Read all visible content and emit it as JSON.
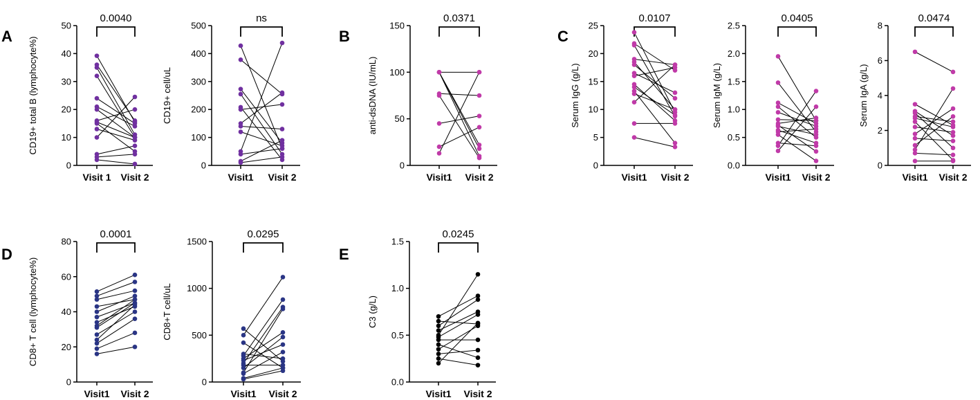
{
  "panel_letters": [
    "A",
    "B",
    "C",
    "D",
    "E"
  ],
  "chart_data": [
    {
      "type": "scatter",
      "panel": "A",
      "color": "#7030a0",
      "ylabel": "CD19+ total B (lymphocyte%)",
      "categories": [
        "Visit 1",
        "Visit 2"
      ],
      "ylim": [
        0,
        50
      ],
      "yticks": [
        "0",
        "10",
        "20",
        "30",
        "40",
        "50"
      ],
      "p_label": "0.0040",
      "pairs": [
        [
          39.2,
          15.5
        ],
        [
          36,
          16
        ],
        [
          35,
          11
        ],
        [
          32,
          10
        ],
        [
          24,
          15
        ],
        [
          21,
          14
        ],
        [
          20,
          10
        ],
        [
          16,
          20
        ],
        [
          15.5,
          10
        ],
        [
          15,
          5
        ],
        [
          13,
          9
        ],
        [
          10,
          24.5
        ],
        [
          4,
          7
        ],
        [
          3,
          4
        ],
        [
          2,
          0.5
        ]
      ]
    },
    {
      "type": "scatter",
      "panel": "A",
      "color": "#7030a0",
      "ylabel": "CD19+ cell/uL",
      "categories": [
        "Visit1",
        "Visit 2"
      ],
      "ylim": [
        0,
        500
      ],
      "yticks": [
        "0",
        "100",
        "200",
        "300",
        "400",
        "500"
      ],
      "p_label": "ns",
      "pairs": [
        [
          428,
          60
        ],
        [
          378,
          255
        ],
        [
          273,
          80
        ],
        [
          255,
          40
        ],
        [
          208,
          20
        ],
        [
          200,
          218
        ],
        [
          150,
          260
        ],
        [
          140,
          130
        ],
        [
          120,
          70
        ],
        [
          50,
          438
        ],
        [
          40,
          60
        ],
        [
          15,
          90
        ],
        [
          10,
          30
        ]
      ]
    },
    {
      "type": "scatter",
      "panel": "B",
      "color": "#c03aa8",
      "ylabel": "anti-dsDNA (IU/mL)",
      "categories": [
        "Visit1",
        "Visit 2"
      ],
      "ylim": [
        0,
        150
      ],
      "yticks": [
        "0",
        "50",
        "100",
        "150"
      ],
      "p_label": "0.0371",
      "pairs": [
        [
          100,
          100
        ],
        [
          100,
          22
        ],
        [
          100,
          18
        ],
        [
          100,
          10
        ],
        [
          77,
          75
        ],
        [
          75,
          8
        ],
        [
          45,
          53
        ],
        [
          20,
          41
        ],
        [
          13,
          100
        ]
      ]
    },
    {
      "type": "scatter",
      "panel": "C",
      "color": "#c03aa8",
      "ylabel": "Serum IgG (g/L)",
      "categories": [
        "Visit1",
        "Visit 2"
      ],
      "ylim": [
        0,
        25
      ],
      "yticks": [
        "0",
        "5",
        "10",
        "15",
        "20",
        "25"
      ],
      "p_label": "0.0107",
      "pairs": [
        [
          23.8,
          9.5
        ],
        [
          21.8,
          17
        ],
        [
          21.5,
          8.8
        ],
        [
          19,
          18
        ],
        [
          18.5,
          10
        ],
        [
          18,
          12
        ],
        [
          16.5,
          13
        ],
        [
          16,
          17.5
        ],
        [
          14.5,
          8
        ],
        [
          14,
          9
        ],
        [
          13.3,
          4
        ],
        [
          12.8,
          10
        ],
        [
          11.3,
          18
        ],
        [
          7.5,
          7.5
        ],
        [
          5,
          3.3
        ]
      ]
    },
    {
      "type": "scatter",
      "panel": "C",
      "color": "#c03aa8",
      "ylabel": "Serum IgM (g/L)",
      "categories": [
        "Visit1",
        "Visit 2"
      ],
      "ylim": [
        0,
        2.5
      ],
      "yticks": [
        "0.0",
        "0.5",
        "1.0",
        "1.5",
        "2.0",
        "2.5"
      ],
      "p_label": "0.0405",
      "pairs": [
        [
          1.95,
          0.8
        ],
        [
          1.48,
          0.6
        ],
        [
          1.12,
          0.75
        ],
        [
          1.05,
          0.5
        ],
        [
          0.95,
          0.7
        ],
        [
          0.82,
          0.8
        ],
        [
          0.75,
          0.85
        ],
        [
          0.7,
          0.55
        ],
        [
          0.63,
          0.4
        ],
        [
          0.6,
          0.65
        ],
        [
          0.55,
          0.08
        ],
        [
          0.4,
          0.35
        ],
        [
          0.35,
          1.33
        ],
        [
          0.26,
          1.05
        ],
        [
          0.72,
          0.25
        ]
      ]
    },
    {
      "type": "scatter",
      "panel": "C",
      "color": "#c03aa8",
      "ylabel": "Serum IgA (g/L)",
      "categories": [
        "Visit1",
        "Visit 2"
      ],
      "ylim": [
        0,
        8
      ],
      "yticks": [
        "0",
        "2",
        "4",
        "6",
        "8"
      ],
      "p_label": "0.0474",
      "pairs": [
        [
          6.5,
          5.35
        ],
        [
          3.5,
          2.3
        ],
        [
          3.1,
          1.7
        ],
        [
          3.0,
          1.0
        ],
        [
          2.8,
          2.5
        ],
        [
          2.7,
          2.2
        ],
        [
          2.2,
          1.9
        ],
        [
          1.8,
          3.25
        ],
        [
          1.55,
          1.4
        ],
        [
          1.15,
          2.8
        ],
        [
          0.9,
          4.4
        ],
        [
          0.7,
          0.6
        ],
        [
          0.25,
          0.25
        ],
        [
          2.5,
          0.3
        ]
      ]
    },
    {
      "type": "scatter",
      "panel": "D",
      "color": "#2a3585",
      "ylabel": "CD8+ T cell (lymphocyte%)",
      "categories": [
        "Visit1",
        "Visit 2"
      ],
      "ylim": [
        0,
        80
      ],
      "yticks": [
        "0",
        "20",
        "40",
        "60",
        "80"
      ],
      "p_label": "0.0001",
      "pairs": [
        [
          51.5,
          61
        ],
        [
          49,
          57
        ],
        [
          47,
          52
        ],
        [
          43,
          47
        ],
        [
          40,
          49
        ],
        [
          37,
          45
        ],
        [
          34,
          43
        ],
        [
          32,
          47
        ],
        [
          31,
          45
        ],
        [
          27,
          40
        ],
        [
          24,
          44
        ],
        [
          22,
          36
        ],
        [
          19,
          28
        ],
        [
          16,
          20
        ]
      ]
    },
    {
      "type": "scatter",
      "panel": "D",
      "color": "#2a3585",
      "ylabel": "CD8+T cell/uL",
      "categories": [
        "Visit1",
        "Visit 2"
      ],
      "ylim": [
        0,
        1500
      ],
      "yticks": [
        "0",
        "500",
        "1000",
        "1500"
      ],
      "p_label": "0.0295",
      "pairs": [
        [
          570,
          220
        ],
        [
          500,
          1120
        ],
        [
          420,
          150
        ],
        [
          300,
          250
        ],
        [
          280,
          880
        ],
        [
          250,
          530
        ],
        [
          230,
          400
        ],
        [
          200,
          800
        ],
        [
          180,
          180
        ],
        [
          150,
          480
        ],
        [
          100,
          780
        ],
        [
          90,
          320
        ],
        [
          40,
          150
        ],
        [
          30,
          120
        ]
      ]
    },
    {
      "type": "scatter",
      "panel": "E",
      "color": "#000000",
      "ylabel": "C3 (g/L)",
      "categories": [
        "Visit1",
        "Visit 2"
      ],
      "ylim": [
        0,
        1.5
      ],
      "yticks": [
        "0.0",
        "0.5",
        "1.0",
        "1.5"
      ],
      "p_label": "0.0245",
      "pairs": [
        [
          0.7,
          0.92
        ],
        [
          0.65,
          0.62
        ],
        [
          0.6,
          0.88
        ],
        [
          0.55,
          0.75
        ],
        [
          0.5,
          1.15
        ],
        [
          0.48,
          0.72
        ],
        [
          0.45,
          0.45
        ],
        [
          0.4,
          0.26
        ],
        [
          0.35,
          0.6
        ],
        [
          0.3,
          0.34
        ],
        [
          0.25,
          0.18
        ],
        [
          0.2,
          0.63
        ]
      ]
    }
  ]
}
